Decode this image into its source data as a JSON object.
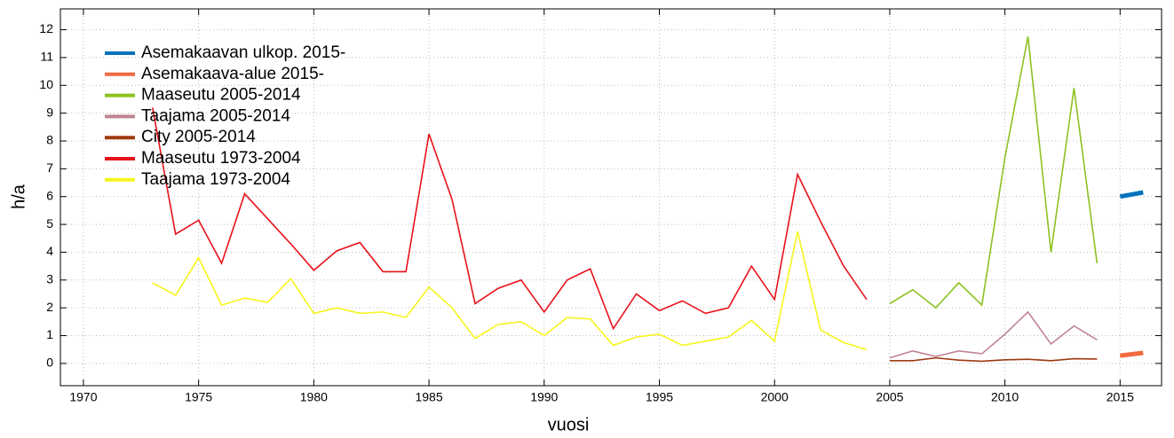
{
  "chart_data": {
    "type": "line",
    "xlabel": "vuosi",
    "ylabel": "h/a",
    "xlim": [
      1969,
      2016.8
    ],
    "ylim": [
      -0.8,
      12.75
    ],
    "xticks": [
      1970,
      1975,
      1980,
      1985,
      1990,
      1995,
      2000,
      2005,
      2010,
      2015
    ],
    "yticks": [
      0,
      1,
      2,
      3,
      4,
      5,
      6,
      7,
      8,
      9,
      10,
      11,
      12
    ],
    "grid": true,
    "legend": "upper left",
    "series": [
      {
        "name": "Asemakaavan ulkop. 2015-",
        "color": "#0072bd",
        "x": [
          2015,
          2016
        ],
        "values": [
          6.0,
          6.15
        ]
      },
      {
        "name": "Asemakaava-alue 2015-",
        "color": "#f26a3f",
        "x": [
          2015,
          2016
        ],
        "values": [
          0.28,
          0.38
        ]
      },
      {
        "name": "Maaseutu 2005-2014",
        "color": "#8cc21f",
        "x": [
          2005,
          2006,
          2007,
          2008,
          2009,
          2010,
          2011,
          2012,
          2013,
          2014
        ],
        "values": [
          2.15,
          2.65,
          2.0,
          2.9,
          2.1,
          7.4,
          11.75,
          4.0,
          9.9,
          3.6
        ]
      },
      {
        "name": "Taajama 2005-2014",
        "color": "#c08592",
        "x": [
          2005,
          2006,
          2007,
          2008,
          2009,
          2010,
          2011,
          2012,
          2013,
          2014
        ],
        "values": [
          0.2,
          0.45,
          0.25,
          0.45,
          0.35,
          1.05,
          1.85,
          0.7,
          1.35,
          0.85
        ]
      },
      {
        "name": "City 2005-2014",
        "color": "#9e3a0f",
        "x": [
          2005,
          2006,
          2007,
          2008,
          2009,
          2010,
          2011,
          2012,
          2013,
          2014
        ],
        "values": [
          0.1,
          0.1,
          0.2,
          0.12,
          0.08,
          0.13,
          0.15,
          0.1,
          0.17,
          0.16
        ]
      },
      {
        "name": "Maaseutu 1973-2004",
        "color": "#e8121a",
        "x": [
          1973,
          1974,
          1975,
          1976,
          1977,
          1978,
          1979,
          1980,
          1981,
          1982,
          1983,
          1984,
          1985,
          1986,
          1987,
          1988,
          1989,
          1990,
          1991,
          1992,
          1993,
          1994,
          1995,
          1996,
          1997,
          1998,
          1999,
          2000,
          2001,
          2002,
          2003,
          2004
        ],
        "values": [
          9.2,
          4.65,
          5.15,
          3.6,
          6.1,
          5.2,
          4.3,
          3.35,
          4.05,
          4.35,
          3.3,
          3.3,
          8.25,
          5.9,
          2.15,
          2.7,
          3.0,
          1.85,
          3.0,
          3.4,
          1.25,
          2.5,
          1.9,
          2.25,
          1.8,
          2.0,
          3.5,
          2.3,
          6.8,
          5.1,
          3.5,
          2.3
        ]
      },
      {
        "name": "Taajama 1973-2004",
        "color": "#f5f51a",
        "x": [
          1973,
          1974,
          1975,
          1976,
          1977,
          1978,
          1979,
          1980,
          1981,
          1982,
          1983,
          1984,
          1985,
          1986,
          1987,
          1988,
          1989,
          1990,
          1991,
          1992,
          1993,
          1994,
          1995,
          1996,
          1997,
          1998,
          1999,
          2000,
          2001,
          2002,
          2003,
          2004
        ],
        "values": [
          2.9,
          2.45,
          3.8,
          2.1,
          2.35,
          2.2,
          3.05,
          1.8,
          2.0,
          1.8,
          1.85,
          1.65,
          2.75,
          2.0,
          0.9,
          1.4,
          1.5,
          1.0,
          1.65,
          1.6,
          0.65,
          0.95,
          1.05,
          0.65,
          0.8,
          0.95,
          1.55,
          0.8,
          4.75,
          1.2,
          0.75,
          0.5
        ]
      }
    ]
  }
}
